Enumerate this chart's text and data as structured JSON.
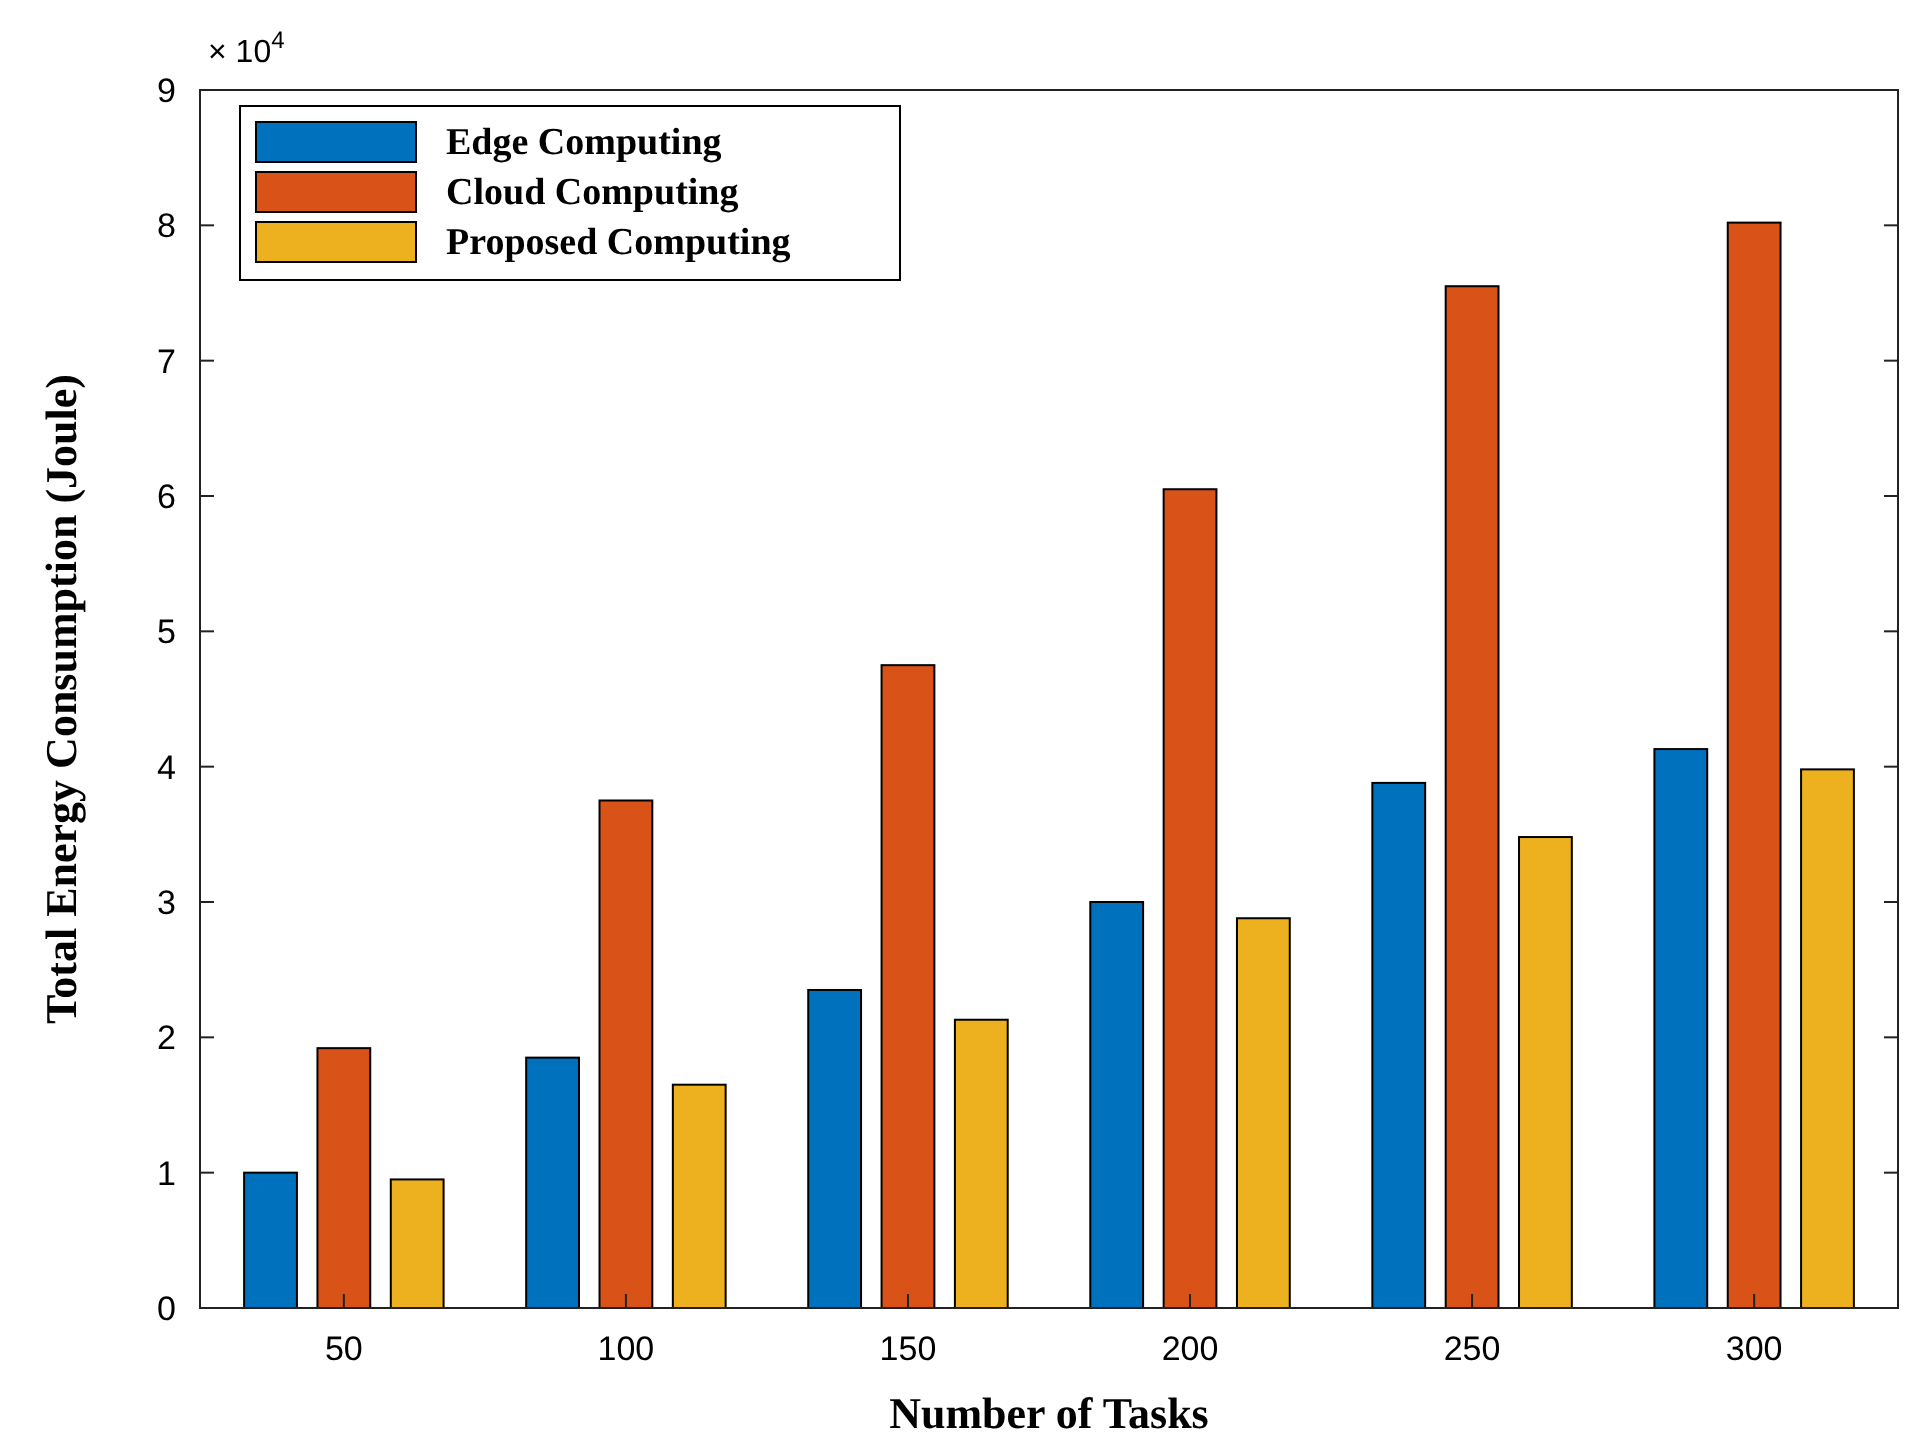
{
  "chart_data": {
    "type": "bar",
    "xlabel": "Number of Tasks",
    "ylabel": "Total Energy Consumption (Joule)",
    "categories": [
      "50",
      "100",
      "150",
      "200",
      "250",
      "300"
    ],
    "series": [
      {
        "name": "Edge Computing",
        "color": "#0072bd",
        "values": [
          1.0,
          1.85,
          2.35,
          3.0,
          3.88,
          4.13
        ]
      },
      {
        "name": "Cloud Computing",
        "color": "#d95319",
        "values": [
          1.92,
          3.75,
          4.75,
          6.05,
          7.55,
          8.02
        ]
      },
      {
        "name": "Proposed Computing",
        "color": "#edb120",
        "values": [
          0.95,
          1.65,
          2.13,
          2.88,
          3.48,
          3.98
        ]
      }
    ],
    "ylim": [
      0,
      9
    ],
    "yticks": [
      0,
      1,
      2,
      3,
      4,
      5,
      6,
      7,
      8,
      9
    ],
    "annotations": [
      "× 10$^{4}$"
    ],
    "grid": false,
    "legend": "top left"
  }
}
